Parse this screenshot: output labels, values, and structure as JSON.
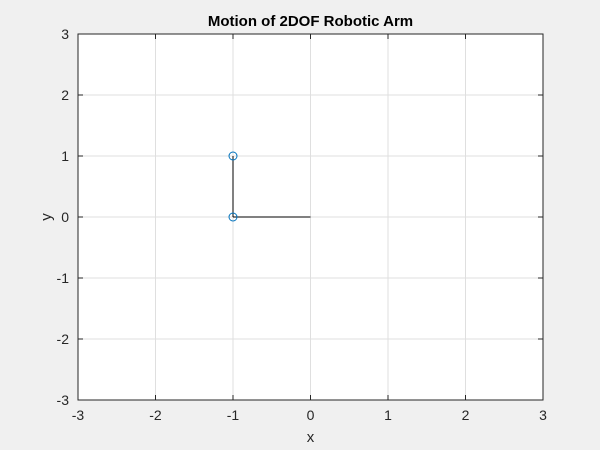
{
  "chart_data": {
    "type": "line",
    "title": "Motion of 2DOF Robotic Arm",
    "xlabel": "x",
    "ylabel": "y",
    "xlim": [
      -3,
      3
    ],
    "ylim": [
      -3,
      3
    ],
    "xticks": [
      -3,
      -2,
      -1,
      0,
      1,
      2,
      3
    ],
    "yticks": [
      -3,
      -2,
      -1,
      0,
      1,
      2,
      3
    ],
    "xtick_labels": [
      "-3",
      "-2",
      "-1",
      "0",
      "1",
      "2",
      "3"
    ],
    "ytick_labels": [
      "-3",
      "-2",
      "-1",
      "0",
      "1",
      "2",
      "3"
    ],
    "grid": true,
    "box": true,
    "series": [
      {
        "kind": "arm-links",
        "x": [
          0,
          -1,
          -1
        ],
        "y": [
          0,
          0,
          1
        ],
        "color": "#000000",
        "marker": "none"
      },
      {
        "kind": "joints",
        "x": [
          -1,
          -1
        ],
        "y": [
          0,
          1
        ],
        "color": "#0072BD",
        "marker": "circle"
      }
    ]
  },
  "colors": {
    "figure_background": "#f0f0f0",
    "axes_background": "#ffffff",
    "grid": "#dfdfdf",
    "axes_line": "#262626"
  }
}
